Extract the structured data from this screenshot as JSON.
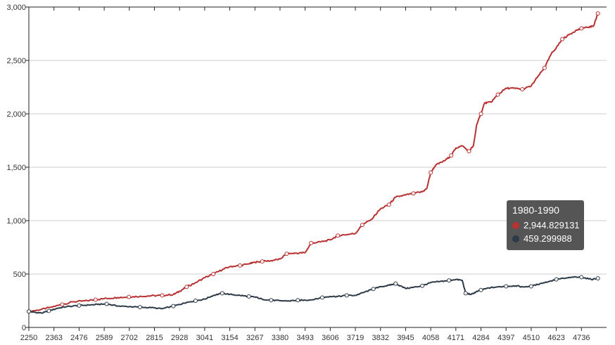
{
  "chart_data": {
    "type": "line",
    "x_range": [
      2250,
      4849
    ],
    "x_ticks": [
      2250,
      2363,
      2476,
      2589,
      2702,
      2815,
      2928,
      3041,
      3154,
      3267,
      3380,
      3493,
      3606,
      3719,
      3832,
      3945,
      4058,
      4171,
      4284,
      4397,
      4510,
      4623,
      4736
    ],
    "y_ticks": [
      0,
      500,
      1000,
      1500,
      2000,
      2500,
      3000
    ],
    "y_tick_labels": [
      "0",
      "500",
      "1,000",
      "1,500",
      "2,000",
      "2,500",
      "3,000"
    ],
    "ylim": [
      0,
      3000
    ],
    "grid": "horizontal",
    "series": [
      {
        "color": "#b83232",
        "points": [
          [
            2250,
            150
          ],
          [
            2300,
            165
          ],
          [
            2350,
            190
          ],
          [
            2400,
            215
          ],
          [
            2450,
            240
          ],
          [
            2500,
            248
          ],
          [
            2550,
            260
          ],
          [
            2600,
            272
          ],
          [
            2650,
            280
          ],
          [
            2700,
            285
          ],
          [
            2750,
            292
          ],
          [
            2800,
            296
          ],
          [
            2850,
            300
          ],
          [
            2900,
            308
          ],
          [
            2930,
            340
          ],
          [
            2960,
            380
          ],
          [
            3000,
            420
          ],
          [
            3041,
            465
          ],
          [
            3080,
            500
          ],
          [
            3120,
            540
          ],
          [
            3154,
            570
          ],
          [
            3200,
            580
          ],
          [
            3240,
            595
          ],
          [
            3267,
            610
          ],
          [
            3300,
            618
          ],
          [
            3340,
            625
          ],
          [
            3380,
            640
          ],
          [
            3410,
            690
          ],
          [
            3450,
            695
          ],
          [
            3493,
            700
          ],
          [
            3520,
            790
          ],
          [
            3560,
            800
          ],
          [
            3606,
            820
          ],
          [
            3640,
            860
          ],
          [
            3680,
            870
          ],
          [
            3719,
            880
          ],
          [
            3750,
            960
          ],
          [
            3790,
            1010
          ],
          [
            3832,
            1110
          ],
          [
            3870,
            1150
          ],
          [
            3900,
            1220
          ],
          [
            3945,
            1240
          ],
          [
            3980,
            1255
          ],
          [
            4020,
            1270
          ],
          [
            4040,
            1300
          ],
          [
            4058,
            1450
          ],
          [
            4080,
            1520
          ],
          [
            4120,
            1560
          ],
          [
            4150,
            1610
          ],
          [
            4171,
            1680
          ],
          [
            4200,
            1700
          ],
          [
            4230,
            1650
          ],
          [
            4250,
            1700
          ],
          [
            4265,
            1900
          ],
          [
            4284,
            2000
          ],
          [
            4300,
            2100
          ],
          [
            4330,
            2110
          ],
          [
            4360,
            2180
          ],
          [
            4397,
            2240
          ],
          [
            4430,
            2240
          ],
          [
            4470,
            2230
          ],
          [
            4510,
            2260
          ],
          [
            4540,
            2350
          ],
          [
            4570,
            2430
          ],
          [
            4600,
            2560
          ],
          [
            4623,
            2620
          ],
          [
            4650,
            2700
          ],
          [
            4680,
            2740
          ],
          [
            4710,
            2780
          ],
          [
            4736,
            2800
          ],
          [
            4760,
            2810
          ],
          [
            4790,
            2820
          ],
          [
            4810,
            2940
          ]
        ],
        "tooltip_value": "2,944.829131"
      },
      {
        "color": "#2d3a47",
        "points": [
          [
            2250,
            150
          ],
          [
            2280,
            140
          ],
          [
            2310,
            135
          ],
          [
            2340,
            155
          ],
          [
            2380,
            180
          ],
          [
            2420,
            195
          ],
          [
            2476,
            205
          ],
          [
            2520,
            210
          ],
          [
            2560,
            215
          ],
          [
            2600,
            220
          ],
          [
            2650,
            200
          ],
          [
            2702,
            195
          ],
          [
            2750,
            190
          ],
          [
            2800,
            185
          ],
          [
            2850,
            175
          ],
          [
            2900,
            200
          ],
          [
            2928,
            215
          ],
          [
            2960,
            235
          ],
          [
            3000,
            250
          ],
          [
            3041,
            265
          ],
          [
            3080,
            300
          ],
          [
            3120,
            320
          ],
          [
            3154,
            310
          ],
          [
            3200,
            300
          ],
          [
            3240,
            290
          ],
          [
            3267,
            285
          ],
          [
            3300,
            265
          ],
          [
            3340,
            255
          ],
          [
            3380,
            250
          ],
          [
            3420,
            248
          ],
          [
            3460,
            255
          ],
          [
            3493,
            255
          ],
          [
            3530,
            260
          ],
          [
            3570,
            280
          ],
          [
            3606,
            290
          ],
          [
            3640,
            290
          ],
          [
            3680,
            300
          ],
          [
            3719,
            300
          ],
          [
            3760,
            330
          ],
          [
            3800,
            360
          ],
          [
            3832,
            380
          ],
          [
            3870,
            395
          ],
          [
            3900,
            410
          ],
          [
            3945,
            365
          ],
          [
            3980,
            375
          ],
          [
            4020,
            390
          ],
          [
            4058,
            420
          ],
          [
            4100,
            430
          ],
          [
            4140,
            440
          ],
          [
            4171,
            450
          ],
          [
            4200,
            440
          ],
          [
            4215,
            320
          ],
          [
            4240,
            310
          ],
          [
            4260,
            330
          ],
          [
            4284,
            350
          ],
          [
            4320,
            370
          ],
          [
            4360,
            380
          ],
          [
            4397,
            385
          ],
          [
            4440,
            390
          ],
          [
            4470,
            380
          ],
          [
            4510,
            385
          ],
          [
            4550,
            410
          ],
          [
            4590,
            430
          ],
          [
            4623,
            450
          ],
          [
            4660,
            460
          ],
          [
            4700,
            470
          ],
          [
            4736,
            470
          ],
          [
            4780,
            450
          ],
          [
            4810,
            460
          ]
        ],
        "tooltip_value": "459.299988"
      }
    ],
    "tooltip": {
      "title": "1980-1990",
      "bg": "#555555"
    }
  }
}
